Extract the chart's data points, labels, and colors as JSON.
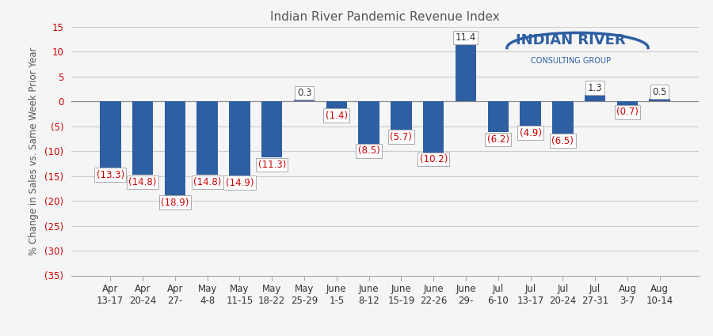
{
  "categories": [
    "Apr\n13-17",
    "Apr\n20-24",
    "Apr\n27-",
    "May\n4-8",
    "May\n11-15",
    "May\n18-22",
    "May\n25-29",
    "June\n1-5",
    "June\n8-12",
    "June\n15-19",
    "June\n22-26",
    "June\n29-",
    "Jul\n6-10",
    "Jul\n13-17",
    "Jul\n20-24",
    "Jul\n27-31",
    "Aug\n3-7",
    "Aug\n10-14"
  ],
  "values": [
    -13.3,
    -14.8,
    -18.9,
    -14.8,
    -14.9,
    -11.3,
    0.3,
    -1.4,
    -8.5,
    -5.7,
    -10.2,
    11.4,
    -6.2,
    -4.9,
    -6.5,
    1.3,
    -0.7,
    0.5
  ],
  "bar_color": "#2E5FA3",
  "positive_label_color": "#333333",
  "negative_label_color": "#CC0000",
  "title": "Indian River Pandemic Revenue Index",
  "ylabel": "% Change in Sales vs. Same Week Prior Year",
  "ylim": [
    -35,
    15
  ],
  "yticks": [
    15,
    10,
    5,
    0,
    -5,
    -10,
    -15,
    -20,
    -25,
    -30,
    -35
  ],
  "ytick_labels": [
    "15",
    "10",
    "5",
    "0",
    "(5)",
    "(10)",
    "(15)",
    "(20)",
    "(25)",
    "(30)",
    "(35)"
  ],
  "background_color": "#f5f5f5",
  "grid_color": "#cccccc",
  "title_fontsize": 11,
  "label_fontsize": 8.5,
  "tick_fontsize": 8.5
}
